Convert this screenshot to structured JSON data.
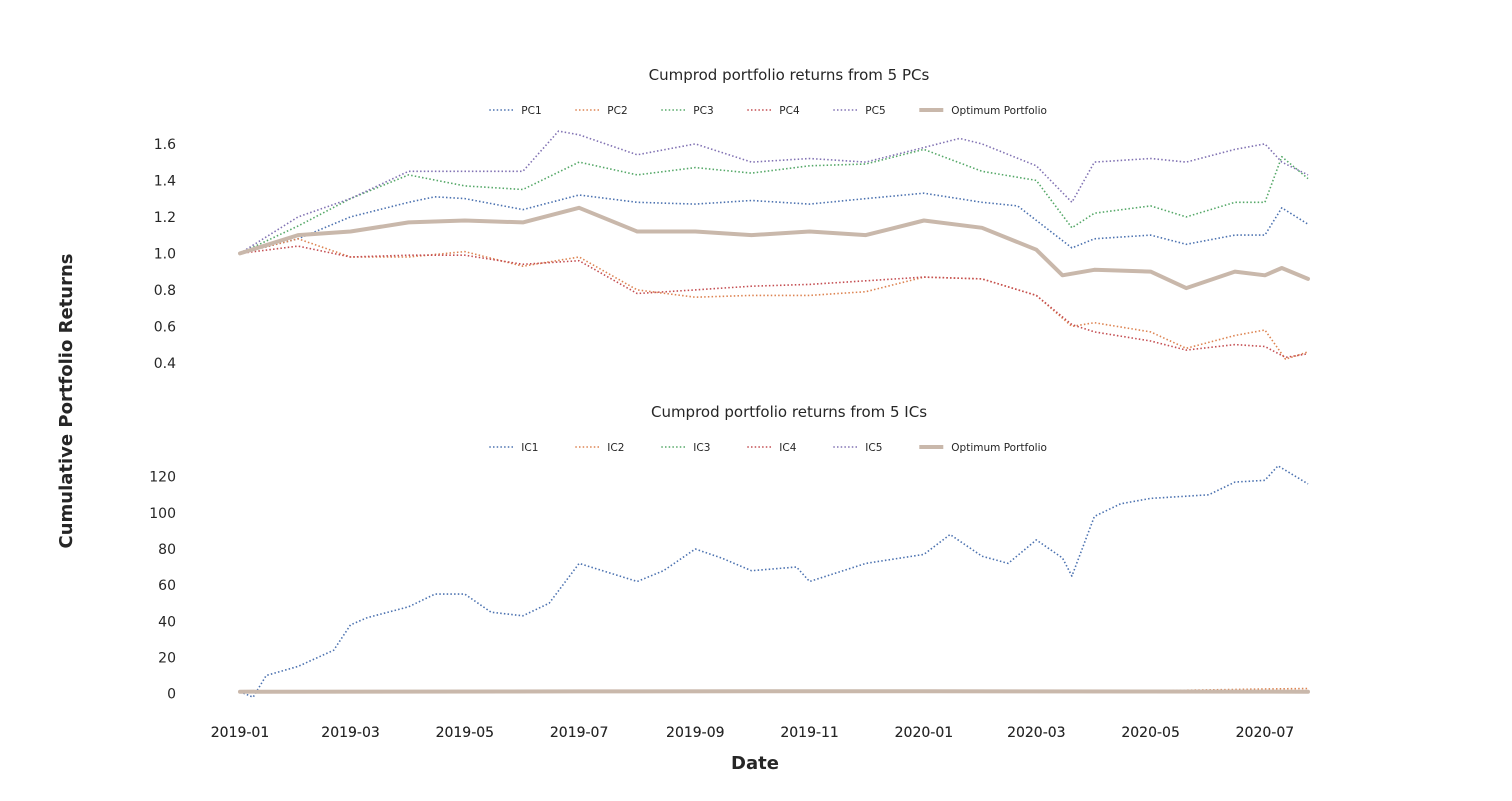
{
  "figure": {
    "xlabel": "Date",
    "ylabel": "Cumulative Portfolio Returns"
  },
  "chart_data": [
    {
      "type": "line",
      "title": "Cumprod portfolio returns from 5 PCs",
      "x_ticks": [
        "2019-01",
        "2019-03",
        "2019-05",
        "2019-07",
        "2019-09",
        "2019-11",
        "2020-01",
        "2020-03",
        "2020-05",
        "2020-07"
      ],
      "y_ticks": [
        "0.4",
        "0.6",
        "0.8",
        "1.0",
        "1.2",
        "1.4",
        "1.6"
      ],
      "xlim": [
        "2019-01-01",
        "2020-07-24"
      ],
      "ylim": [
        0.35,
        1.72
      ],
      "legend_position": "top-center",
      "grid": false,
      "series": [
        {
          "name": "PC1",
          "color": "#4c72b0",
          "style": "dotted",
          "x": [
            "2019-01-01",
            "2019-02-01",
            "2019-03-01",
            "2019-04-01",
            "2019-04-15",
            "2019-05-01",
            "2019-06-01",
            "2019-07-01",
            "2019-08-01",
            "2019-09-01",
            "2019-10-01",
            "2019-11-01",
            "2019-12-01",
            "2020-01-01",
            "2020-02-01",
            "2020-02-20",
            "2020-03-20",
            "2020-04-01",
            "2020-05-01",
            "2020-05-20",
            "2020-06-15",
            "2020-07-01",
            "2020-07-10",
            "2020-07-24"
          ],
          "y": [
            1.0,
            1.08,
            1.2,
            1.28,
            1.31,
            1.3,
            1.24,
            1.32,
            1.28,
            1.27,
            1.29,
            1.27,
            1.3,
            1.33,
            1.28,
            1.26,
            1.03,
            1.08,
            1.1,
            1.05,
            1.1,
            1.1,
            1.25,
            1.16
          ]
        },
        {
          "name": "PC2",
          "color": "#dd8452",
          "style": "dotted",
          "x": [
            "2019-01-01",
            "2019-02-01",
            "2019-03-01",
            "2019-04-01",
            "2019-05-01",
            "2019-06-01",
            "2019-07-01",
            "2019-08-01",
            "2019-09-01",
            "2019-10-01",
            "2019-11-01",
            "2019-12-01",
            "2020-01-01",
            "2020-02-01",
            "2020-03-01",
            "2020-03-20",
            "2020-04-01",
            "2020-05-01",
            "2020-05-20",
            "2020-06-15",
            "2020-07-01",
            "2020-07-12",
            "2020-07-24"
          ],
          "y": [
            1.0,
            1.08,
            0.98,
            0.98,
            1.01,
            0.93,
            0.98,
            0.8,
            0.76,
            0.77,
            0.77,
            0.79,
            0.87,
            0.86,
            0.77,
            0.6,
            0.62,
            0.57,
            0.48,
            0.55,
            0.58,
            0.42,
            0.46
          ]
        },
        {
          "name": "PC3",
          "color": "#55a868",
          "style": "dotted",
          "x": [
            "2019-01-01",
            "2019-02-01",
            "2019-03-01",
            "2019-04-01",
            "2019-05-01",
            "2019-06-01",
            "2019-07-01",
            "2019-08-01",
            "2019-09-01",
            "2019-10-01",
            "2019-11-01",
            "2019-12-01",
            "2020-01-01",
            "2020-02-01",
            "2020-03-01",
            "2020-03-20",
            "2020-04-01",
            "2020-05-01",
            "2020-05-20",
            "2020-06-15",
            "2020-07-01",
            "2020-07-10",
            "2020-07-24"
          ],
          "y": [
            1.0,
            1.15,
            1.3,
            1.43,
            1.37,
            1.35,
            1.5,
            1.43,
            1.47,
            1.44,
            1.48,
            1.49,
            1.57,
            1.45,
            1.4,
            1.14,
            1.22,
            1.26,
            1.2,
            1.28,
            1.28,
            1.53,
            1.41
          ]
        },
        {
          "name": "PC4",
          "color": "#c44e52",
          "style": "dotted",
          "x": [
            "2019-01-01",
            "2019-02-01",
            "2019-03-01",
            "2019-04-01",
            "2019-05-01",
            "2019-06-01",
            "2019-07-01",
            "2019-08-01",
            "2019-09-01",
            "2019-10-01",
            "2019-11-01",
            "2019-12-01",
            "2020-01-01",
            "2020-02-01",
            "2020-03-01",
            "2020-03-20",
            "2020-04-01",
            "2020-05-01",
            "2020-05-20",
            "2020-06-15",
            "2020-07-01",
            "2020-07-12",
            "2020-07-24"
          ],
          "y": [
            1.0,
            1.04,
            0.98,
            0.99,
            0.99,
            0.94,
            0.96,
            0.78,
            0.8,
            0.82,
            0.83,
            0.85,
            0.87,
            0.86,
            0.77,
            0.61,
            0.57,
            0.52,
            0.47,
            0.5,
            0.49,
            0.43,
            0.45
          ]
        },
        {
          "name": "PC5",
          "color": "#8172b3",
          "style": "dotted",
          "x": [
            "2019-01-01",
            "2019-02-01",
            "2019-03-01",
            "2019-04-01",
            "2019-05-01",
            "2019-06-01",
            "2019-06-20",
            "2019-07-01",
            "2019-08-01",
            "2019-09-01",
            "2019-10-01",
            "2019-11-01",
            "2019-12-01",
            "2020-01-01",
            "2020-01-20",
            "2020-02-01",
            "2020-03-01",
            "2020-03-20",
            "2020-04-01",
            "2020-05-01",
            "2020-05-20",
            "2020-06-15",
            "2020-07-01",
            "2020-07-10",
            "2020-07-24"
          ],
          "y": [
            1.0,
            1.2,
            1.3,
            1.45,
            1.45,
            1.45,
            1.67,
            1.65,
            1.54,
            1.6,
            1.5,
            1.52,
            1.5,
            1.58,
            1.63,
            1.6,
            1.48,
            1.28,
            1.5,
            1.52,
            1.5,
            1.57,
            1.6,
            1.5,
            1.43
          ]
        },
        {
          "name": "Optimum Portfolio",
          "color": "#c9b8ab",
          "style": "solid",
          "x": [
            "2019-01-01",
            "2019-02-01",
            "2019-03-01",
            "2019-04-01",
            "2019-05-01",
            "2019-06-01",
            "2019-07-01",
            "2019-08-01",
            "2019-09-01",
            "2019-10-01",
            "2019-11-01",
            "2019-12-01",
            "2020-01-01",
            "2020-02-01",
            "2020-03-01",
            "2020-03-15",
            "2020-04-01",
            "2020-05-01",
            "2020-05-20",
            "2020-06-15",
            "2020-07-01",
            "2020-07-10",
            "2020-07-24"
          ],
          "y": [
            1.0,
            1.1,
            1.12,
            1.17,
            1.18,
            1.17,
            1.25,
            1.12,
            1.12,
            1.1,
            1.12,
            1.1,
            1.18,
            1.14,
            1.02,
            0.88,
            0.91,
            0.9,
            0.81,
            0.9,
            0.88,
            0.92,
            0.86
          ]
        }
      ]
    },
    {
      "type": "line",
      "title": "Cumprod portfolio returns from 5 ICs",
      "x_ticks": [
        "2019-01",
        "2019-03",
        "2019-05",
        "2019-07",
        "2019-09",
        "2019-11",
        "2020-01",
        "2020-03",
        "2020-05",
        "2020-07"
      ],
      "y_ticks": [
        "0",
        "20",
        "40",
        "60",
        "80",
        "100",
        "120"
      ],
      "xlim": [
        "2019-01-01",
        "2020-07-24"
      ],
      "ylim": [
        -8,
        132
      ],
      "legend_position": "top-center",
      "grid": false,
      "series": [
        {
          "name": "IC1",
          "color": "#4c72b0",
          "style": "dotted",
          "x": [
            "2019-01-01",
            "2019-01-08",
            "2019-01-15",
            "2019-02-01",
            "2019-02-20",
            "2019-03-01",
            "2019-03-10",
            "2019-04-01",
            "2019-04-15",
            "2019-05-01",
            "2019-05-15",
            "2019-06-01",
            "2019-06-15",
            "2019-07-01",
            "2019-08-01",
            "2019-08-15",
            "2019-09-01",
            "2019-09-15",
            "2019-10-01",
            "2019-10-25",
            "2019-11-01",
            "2019-12-01",
            "2020-01-01",
            "2020-01-15",
            "2020-02-01",
            "2020-02-15",
            "2020-03-01",
            "2020-03-15",
            "2020-03-20",
            "2020-04-01",
            "2020-04-15",
            "2020-05-01",
            "2020-06-01",
            "2020-06-15",
            "2020-07-01",
            "2020-07-08",
            "2020-07-24"
          ],
          "y": [
            1,
            -2,
            10,
            15,
            24,
            38,
            42,
            48,
            55,
            55,
            45,
            43,
            50,
            72,
            62,
            68,
            80,
            75,
            68,
            70,
            62,
            72,
            77,
            88,
            76,
            72,
            85,
            75,
            65,
            98,
            105,
            108,
            110,
            117,
            118,
            126,
            116
          ]
        },
        {
          "name": "IC2",
          "color": "#dd8452",
          "style": "dotted",
          "x": [
            "2019-01-01",
            "2019-07-01",
            "2020-01-01",
            "2020-05-01",
            "2020-07-01",
            "2020-07-24"
          ],
          "y": [
            1,
            1.5,
            1.8,
            1.5,
            2.5,
            2.8
          ]
        },
        {
          "name": "IC3",
          "color": "#55a868",
          "style": "dotted",
          "x": [
            "2019-01-01",
            "2019-07-01",
            "2020-01-01",
            "2020-07-24"
          ],
          "y": [
            1,
            1.4,
            1.6,
            1.3
          ]
        },
        {
          "name": "IC4",
          "color": "#c44e52",
          "style": "dotted",
          "x": [
            "2019-01-01",
            "2019-07-01",
            "2020-01-01",
            "2020-07-24"
          ],
          "y": [
            1,
            1.2,
            1.3,
            1.1
          ]
        },
        {
          "name": "IC5",
          "color": "#8172b3",
          "style": "dotted",
          "x": [
            "2019-01-01",
            "2019-07-01",
            "2020-01-01",
            "2020-07-24"
          ],
          "y": [
            1,
            1.3,
            1.5,
            1.2
          ]
        },
        {
          "name": "Optimum Portfolio",
          "color": "#c9b8ab",
          "style": "solid",
          "x": [
            "2019-01-01",
            "2019-07-01",
            "2020-01-01",
            "2020-07-24"
          ],
          "y": [
            1,
            1.2,
            1.3,
            1.0
          ]
        }
      ]
    }
  ]
}
